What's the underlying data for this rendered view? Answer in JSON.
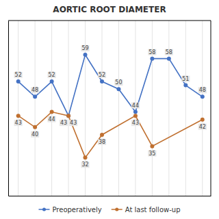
{
  "chart_data": {
    "type": "line",
    "title": "AORTIC ROOT DIAMETER",
    "xlim": [
      -0.6,
      11.5
    ],
    "xticks": [
      0,
      1,
      2,
      3,
      4,
      5,
      6,
      7,
      8,
      9,
      10,
      11
    ],
    "ylim": [
      22,
      68
    ],
    "tick_labels": false,
    "grid": true,
    "data_labels": true,
    "legend": "bottom",
    "series": [
      {
        "name": "Preoperatively",
        "color": "#4472c4",
        "marker": "circle",
        "x": [
          0,
          1,
          2,
          3,
          4,
          5,
          6,
          7,
          8,
          9,
          10,
          11
        ],
        "values": [
          52,
          48,
          52,
          43,
          59,
          52,
          50,
          44,
          58,
          58,
          51,
          48
        ]
      },
      {
        "name": "At last follow-up",
        "color": "#c07030",
        "marker": "circle",
        "x": [
          0,
          1,
          2,
          3,
          4,
          5,
          7,
          8,
          11
        ],
        "values": [
          43,
          40,
          44,
          43,
          32,
          38,
          43,
          35,
          42
        ]
      }
    ]
  }
}
